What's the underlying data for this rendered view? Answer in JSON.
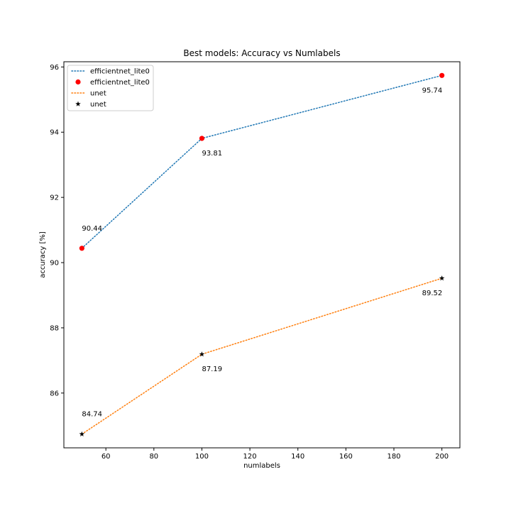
{
  "chart_data": {
    "type": "line",
    "title": "Best models: Accuracy vs Numlabels",
    "xlabel": "numlabels",
    "ylabel": "accuracy [%]",
    "xlim": [
      42.5,
      207.5
    ],
    "ylim": [
      84.32,
      96.16
    ],
    "xticks": [
      60,
      80,
      100,
      120,
      140,
      160,
      180,
      200
    ],
    "yticks": [
      86,
      88,
      90,
      92,
      94,
      96
    ],
    "grid": false,
    "legend_position": "upper-left",
    "x": [
      50,
      100,
      200
    ],
    "series": [
      {
        "name": "efficientnet_lite0",
        "values": [
          90.44,
          93.81,
          95.74
        ],
        "line_color": "#1f77b4",
        "line_style": "dotted",
        "marker": "circle",
        "marker_color": "#ff0000",
        "labels": [
          "90.44",
          "93.81",
          "95.74"
        ],
        "label_placement": [
          "above",
          "below",
          "below-left"
        ]
      },
      {
        "name": "unet",
        "values": [
          84.74,
          87.19,
          89.52
        ],
        "line_color": "#ff7f0e",
        "line_style": "dotted",
        "marker": "star",
        "marker_color": "#000000",
        "labels": [
          "84.74",
          "87.19",
          "89.52"
        ],
        "label_placement": [
          "above",
          "below",
          "below-left"
        ]
      }
    ],
    "legend": [
      {
        "label": "efficientnet_lite0",
        "kind": "line",
        "color": "#1f77b4"
      },
      {
        "label": "efficientnet_lite0",
        "kind": "circle",
        "color": "#ff0000"
      },
      {
        "label": "unet",
        "kind": "line",
        "color": "#ff7f0e"
      },
      {
        "label": "unet",
        "kind": "star",
        "color": "#000000"
      }
    ]
  }
}
